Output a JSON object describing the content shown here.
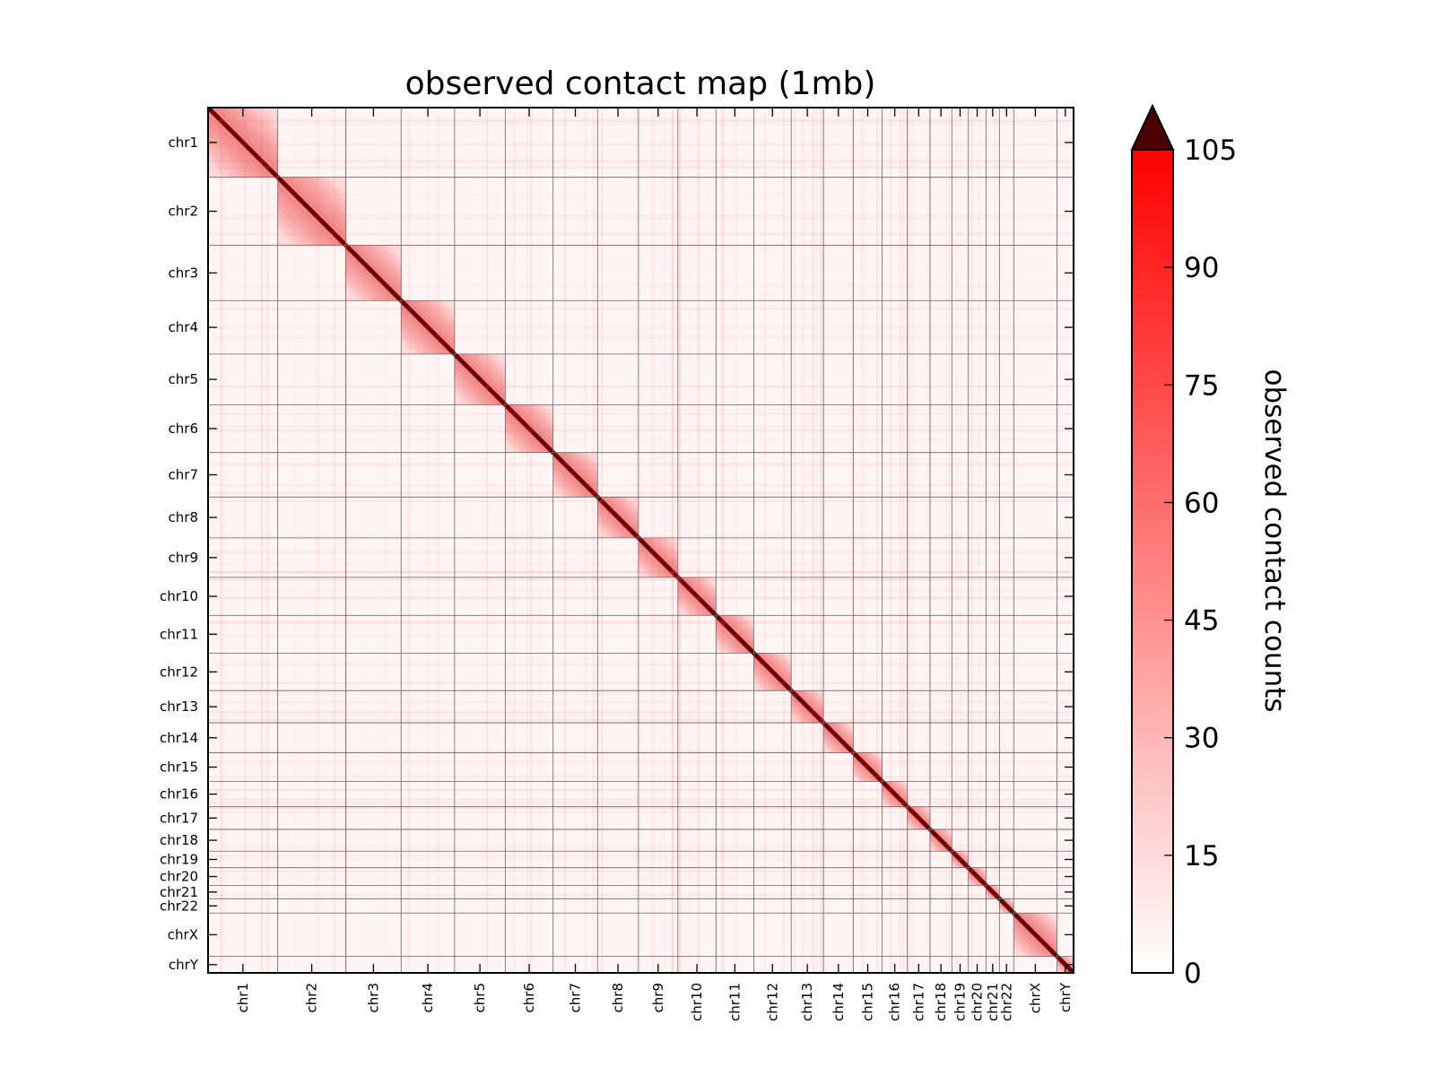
{
  "chart_data": {
    "type": "heatmap",
    "title": "observed contact map (1mb)",
    "resolution": "1mb",
    "chromosomes": [
      {
        "name": "chr1",
        "bins": 249
      },
      {
        "name": "chr2",
        "bins": 243
      },
      {
        "name": "chr3",
        "bins": 198
      },
      {
        "name": "chr4",
        "bins": 191
      },
      {
        "name": "chr5",
        "bins": 181
      },
      {
        "name": "chr6",
        "bins": 171
      },
      {
        "name": "chr7",
        "bins": 159
      },
      {
        "name": "chr8",
        "bins": 146
      },
      {
        "name": "chr9",
        "bins": 141
      },
      {
        "name": "chr10",
        "bins": 136
      },
      {
        "name": "chr11",
        "bins": 135
      },
      {
        "name": "chr12",
        "bins": 134
      },
      {
        "name": "chr13",
        "bins": 115
      },
      {
        "name": "chr14",
        "bins": 107
      },
      {
        "name": "chr15",
        "bins": 103
      },
      {
        "name": "chr16",
        "bins": 90
      },
      {
        "name": "chr17",
        "bins": 81
      },
      {
        "name": "chr18",
        "bins": 78
      },
      {
        "name": "chr19",
        "bins": 59
      },
      {
        "name": "chr20",
        "bins": 63
      },
      {
        "name": "chr21",
        "bins": 48
      },
      {
        "name": "chr22",
        "bins": 51
      },
      {
        "name": "chrX",
        "bins": 155
      },
      {
        "name": "chrY",
        "bins": 59
      }
    ],
    "colorbar": {
      "label": "observed contact counts",
      "ticks": [
        0,
        15,
        30,
        45,
        60,
        75,
        90,
        105
      ],
      "vmin": 0,
      "vmax": 105,
      "extend": "max",
      "low_color": "#ffffff",
      "high_color": "#ff0000",
      "over_color": "#4d0000"
    },
    "colormap": "white-to-red",
    "grid": true
  }
}
